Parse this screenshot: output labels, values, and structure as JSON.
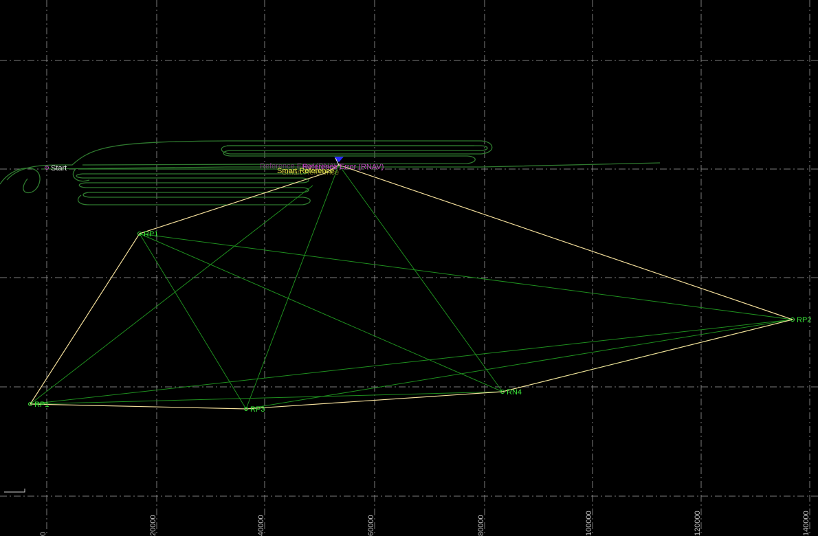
{
  "view": {
    "background": "#000000",
    "grid_color": "#9a9a9a",
    "boundary_color": "#f2dd9a",
    "diagonal_color": "#1f8f1f",
    "track_color": "#2f7a2f",
    "label_color": "#39e339"
  },
  "axis": {
    "x_ticks": [
      "0",
      "20000",
      "40000",
      "60000",
      "80000",
      "100000",
      "120000",
      "140000"
    ]
  },
  "points": {
    "start": "Start",
    "rp_left_upper": "RP1",
    "rp_right": "RP2",
    "rp_left_lower": "RP1",
    "rp_bottom_mid": "RP3",
    "rn4": "RN4"
  },
  "labels": {
    "reference_error": "Reference Error (RNAV)",
    "smart_reference": "Smart Reference",
    "overlap_label": "Smart Reference"
  },
  "icons": {
    "vehicle": "triangle-marker-icon"
  }
}
